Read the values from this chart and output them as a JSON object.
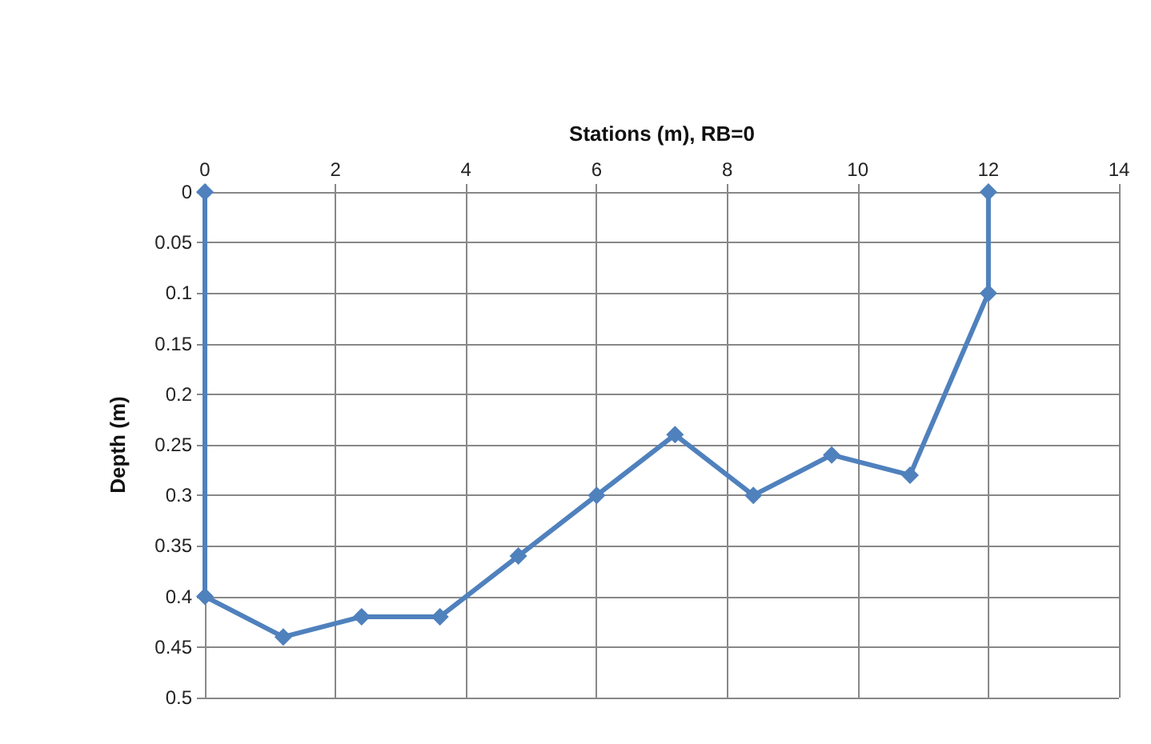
{
  "chart_data": {
    "type": "line",
    "xlabel": "Stations (m), RB=0",
    "ylabel": "Depth (m)",
    "x": [
      0,
      0,
      1.2,
      2.4,
      3.6,
      4.8,
      6,
      7.2,
      8.4,
      9.6,
      10.8,
      12,
      12
    ],
    "series": [
      {
        "color": "#4f81bd",
        "values": [
          0,
          0.4,
          0.44,
          0.42,
          0.42,
          0.36,
          0.3,
          0.24,
          0.3,
          0.26,
          0.28,
          0.1,
          0
        ]
      }
    ],
    "xlim": [
      0,
      14
    ],
    "xticks": [
      0,
      2,
      4,
      6,
      8,
      10,
      12,
      14
    ],
    "ylim": [
      0.5,
      0
    ],
    "yticks": [
      0,
      0.05,
      0.1,
      0.15,
      0.2,
      0.25,
      0.3,
      0.35,
      0.4,
      0.45,
      0.5
    ],
    "grid": true,
    "marker": "diamond",
    "line_style": "solid"
  }
}
